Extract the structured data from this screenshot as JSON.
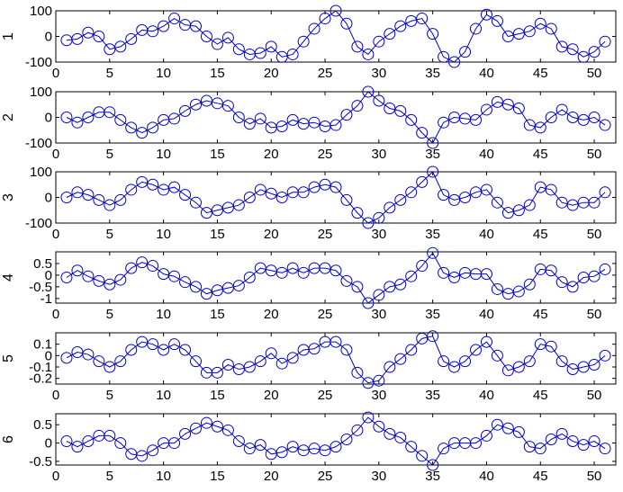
{
  "figure": {
    "line_color": "#0000cc",
    "axes_color": "#000000",
    "background": "#ffffff"
  },
  "chart_data": [
    {
      "type": "line",
      "ylabel": "1",
      "xlim": [
        0,
        52
      ],
      "ylim": [
        -100,
        100
      ],
      "xticks": [
        0,
        5,
        10,
        15,
        20,
        25,
        30,
        35,
        40,
        45,
        50
      ],
      "yticks": [
        100,
        0,
        -100
      ],
      "grid": false,
      "marker": "circle",
      "series": [
        {
          "x": [
            1,
            2,
            3,
            4,
            5,
            6,
            7,
            8,
            9,
            10,
            11,
            12,
            13,
            14,
            15,
            16,
            17,
            18,
            19,
            20,
            21,
            22,
            23,
            24,
            25,
            26,
            27,
            28,
            29,
            30,
            31,
            32,
            33,
            34,
            35,
            36,
            37,
            38,
            39,
            40,
            41,
            42,
            43,
            44,
            45,
            46,
            47,
            48,
            49,
            50,
            51
          ],
          "values": [
            -15,
            -10,
            15,
            0,
            -50,
            -40,
            -10,
            25,
            20,
            40,
            70,
            45,
            40,
            0,
            -30,
            -5,
            -50,
            -70,
            -65,
            -40,
            -80,
            -70,
            -20,
            30,
            70,
            100,
            50,
            -40,
            -70,
            -20,
            10,
            40,
            60,
            70,
            10,
            -80,
            -100,
            -60,
            30,
            85,
            60,
            0,
            10,
            20,
            50,
            30,
            -40,
            -50,
            -80,
            -60,
            -20
          ]
        }
      ]
    },
    {
      "type": "line",
      "ylabel": "2",
      "xlim": [
        0,
        52
      ],
      "ylim": [
        -100,
        100
      ],
      "xticks": [
        0,
        5,
        10,
        15,
        20,
        25,
        30,
        35,
        40,
        45,
        50
      ],
      "yticks": [
        100,
        0,
        -100
      ],
      "grid": false,
      "marker": "circle",
      "series": [
        {
          "x": [
            1,
            2,
            3,
            4,
            5,
            6,
            7,
            8,
            9,
            10,
            11,
            12,
            13,
            14,
            15,
            16,
            17,
            18,
            19,
            20,
            21,
            22,
            23,
            24,
            25,
            26,
            27,
            28,
            29,
            30,
            31,
            32,
            33,
            34,
            35,
            36,
            37,
            38,
            39,
            40,
            41,
            42,
            43,
            44,
            45,
            46,
            47,
            48,
            49,
            50,
            51
          ],
          "values": [
            0,
            -20,
            0,
            20,
            20,
            -10,
            -40,
            -60,
            -40,
            -10,
            -5,
            25,
            50,
            65,
            55,
            45,
            0,
            -25,
            -5,
            -40,
            -35,
            -10,
            -25,
            -20,
            -35,
            -30,
            10,
            45,
            100,
            65,
            35,
            25,
            -10,
            -60,
            -100,
            -20,
            0,
            -5,
            -10,
            30,
            60,
            50,
            35,
            -30,
            -40,
            0,
            30,
            0,
            -10,
            0,
            -30
          ]
        }
      ]
    },
    {
      "type": "line",
      "ylabel": "3",
      "xlim": [
        0,
        52
      ],
      "ylim": [
        -100,
        100
      ],
      "xticks": [
        0,
        5,
        10,
        15,
        20,
        25,
        30,
        35,
        40,
        45,
        50
      ],
      "yticks": [
        100,
        0,
        -100
      ],
      "grid": false,
      "marker": "circle",
      "series": [
        {
          "x": [
            1,
            2,
            3,
            4,
            5,
            6,
            7,
            8,
            9,
            10,
            11,
            12,
            13,
            14,
            15,
            16,
            17,
            18,
            19,
            20,
            21,
            22,
            23,
            24,
            25,
            26,
            27,
            28,
            29,
            30,
            31,
            32,
            33,
            34,
            35,
            36,
            37,
            38,
            39,
            40,
            41,
            42,
            43,
            44,
            45,
            46,
            47,
            48,
            49,
            50,
            51
          ],
          "values": [
            0,
            20,
            10,
            -10,
            -30,
            -10,
            30,
            60,
            50,
            30,
            40,
            10,
            -20,
            -60,
            -50,
            -40,
            -30,
            0,
            30,
            15,
            0,
            20,
            20,
            40,
            50,
            40,
            -10,
            -60,
            -100,
            -80,
            -40,
            -10,
            20,
            60,
            100,
            10,
            -10,
            0,
            20,
            30,
            -20,
            -60,
            -50,
            -30,
            40,
            30,
            -20,
            -30,
            -20,
            -20,
            20
          ]
        }
      ]
    },
    {
      "type": "line",
      "ylabel": "4",
      "xlim": [
        0,
        52
      ],
      "ylim": [
        -1.2,
        1.0
      ],
      "xticks": [
        0,
        5,
        10,
        15,
        20,
        25,
        30,
        35,
        40,
        45,
        50
      ],
      "yticks": [
        0.5,
        0,
        -0.5,
        -1
      ],
      "grid": false,
      "marker": "circle",
      "series": [
        {
          "x": [
            1,
            2,
            3,
            4,
            5,
            6,
            7,
            8,
            9,
            10,
            11,
            12,
            13,
            14,
            15,
            16,
            17,
            18,
            19,
            20,
            21,
            22,
            23,
            24,
            25,
            26,
            27,
            28,
            29,
            30,
            31,
            32,
            33,
            34,
            35,
            36,
            37,
            38,
            39,
            40,
            41,
            42,
            43,
            44,
            45,
            46,
            47,
            48,
            49,
            50,
            51
          ],
          "values": [
            -0.1,
            0.2,
            -0.05,
            -0.25,
            -0.4,
            -0.2,
            0.3,
            0.55,
            0.4,
            0.05,
            -0.05,
            -0.3,
            -0.5,
            -0.8,
            -0.65,
            -0.55,
            -0.45,
            -0.1,
            0.3,
            0.2,
            0.1,
            0.3,
            0.1,
            0.3,
            0.3,
            0.2,
            -0.25,
            -0.5,
            -1.2,
            -0.85,
            -0.5,
            -0.4,
            -0.05,
            0.4,
            0.95,
            0.1,
            -0.1,
            0.1,
            0.05,
            0.05,
            -0.6,
            -0.8,
            -0.7,
            -0.4,
            0.25,
            0.2,
            -0.3,
            -0.5,
            -0.1,
            -0.05,
            0.25
          ]
        }
      ]
    },
    {
      "type": "line",
      "ylabel": "5",
      "xlim": [
        0,
        52
      ],
      "ylim": [
        -0.25,
        0.2
      ],
      "xticks": [
        0,
        5,
        10,
        15,
        20,
        25,
        30,
        35,
        40,
        45,
        50
      ],
      "yticks": [
        0.1,
        0,
        -0.1,
        -0.2
      ],
      "grid": false,
      "marker": "circle",
      "series": [
        {
          "x": [
            1,
            2,
            3,
            4,
            5,
            6,
            7,
            8,
            9,
            10,
            11,
            12,
            13,
            14,
            15,
            16,
            17,
            18,
            19,
            20,
            21,
            22,
            23,
            24,
            25,
            26,
            27,
            28,
            29,
            30,
            31,
            32,
            33,
            34,
            35,
            36,
            37,
            38,
            39,
            40,
            41,
            42,
            43,
            44,
            45,
            46,
            47,
            48,
            49,
            50,
            51
          ],
          "values": [
            -0.02,
            0.03,
            0.01,
            -0.05,
            -0.1,
            -0.05,
            0.05,
            0.12,
            0.1,
            0.05,
            0.1,
            0.05,
            -0.05,
            -0.15,
            -0.15,
            -0.08,
            -0.12,
            -0.1,
            -0.05,
            0.02,
            -0.07,
            -0.02,
            0.05,
            0.06,
            0.12,
            0.12,
            0.05,
            -0.15,
            -0.24,
            -0.22,
            -0.1,
            -0.03,
            0.05,
            0.15,
            0.17,
            -0.05,
            -0.1,
            -0.05,
            0.05,
            0.12,
            0.0,
            -0.13,
            -0.1,
            -0.05,
            0.1,
            0.08,
            -0.05,
            -0.12,
            -0.1,
            -0.08,
            0.0
          ]
        }
      ]
    },
    {
      "type": "line",
      "ylabel": "6",
      "xlim": [
        0,
        52
      ],
      "ylim": [
        -0.6,
        0.8
      ],
      "xticks": [
        0,
        5,
        10,
        15,
        20,
        25,
        30,
        35,
        40,
        45,
        50
      ],
      "yticks": [
        0.5,
        0,
        -0.5
      ],
      "grid": false,
      "marker": "circle",
      "series": [
        {
          "x": [
            1,
            2,
            3,
            4,
            5,
            6,
            7,
            8,
            9,
            10,
            11,
            12,
            13,
            14,
            15,
            16,
            17,
            18,
            19,
            20,
            21,
            22,
            23,
            24,
            25,
            26,
            27,
            28,
            29,
            30,
            31,
            32,
            33,
            34,
            35,
            36,
            37,
            38,
            39,
            40,
            41,
            42,
            43,
            44,
            45,
            46,
            47,
            48,
            49,
            50,
            51
          ],
          "values": [
            0.05,
            -0.1,
            0.05,
            0.2,
            0.2,
            0.0,
            -0.3,
            -0.35,
            -0.2,
            0.0,
            0.0,
            0.25,
            0.4,
            0.55,
            0.45,
            0.35,
            0.05,
            -0.15,
            -0.05,
            -0.3,
            -0.25,
            -0.1,
            -0.2,
            -0.15,
            -0.2,
            -0.1,
            0.1,
            0.35,
            0.7,
            0.45,
            0.25,
            0.15,
            -0.1,
            -0.35,
            -0.6,
            -0.15,
            0.0,
            0.0,
            0.0,
            0.2,
            0.5,
            0.4,
            0.3,
            -0.1,
            -0.15,
            0.1,
            0.25,
            0.05,
            -0.05,
            0.05,
            -0.15
          ]
        }
      ]
    }
  ]
}
